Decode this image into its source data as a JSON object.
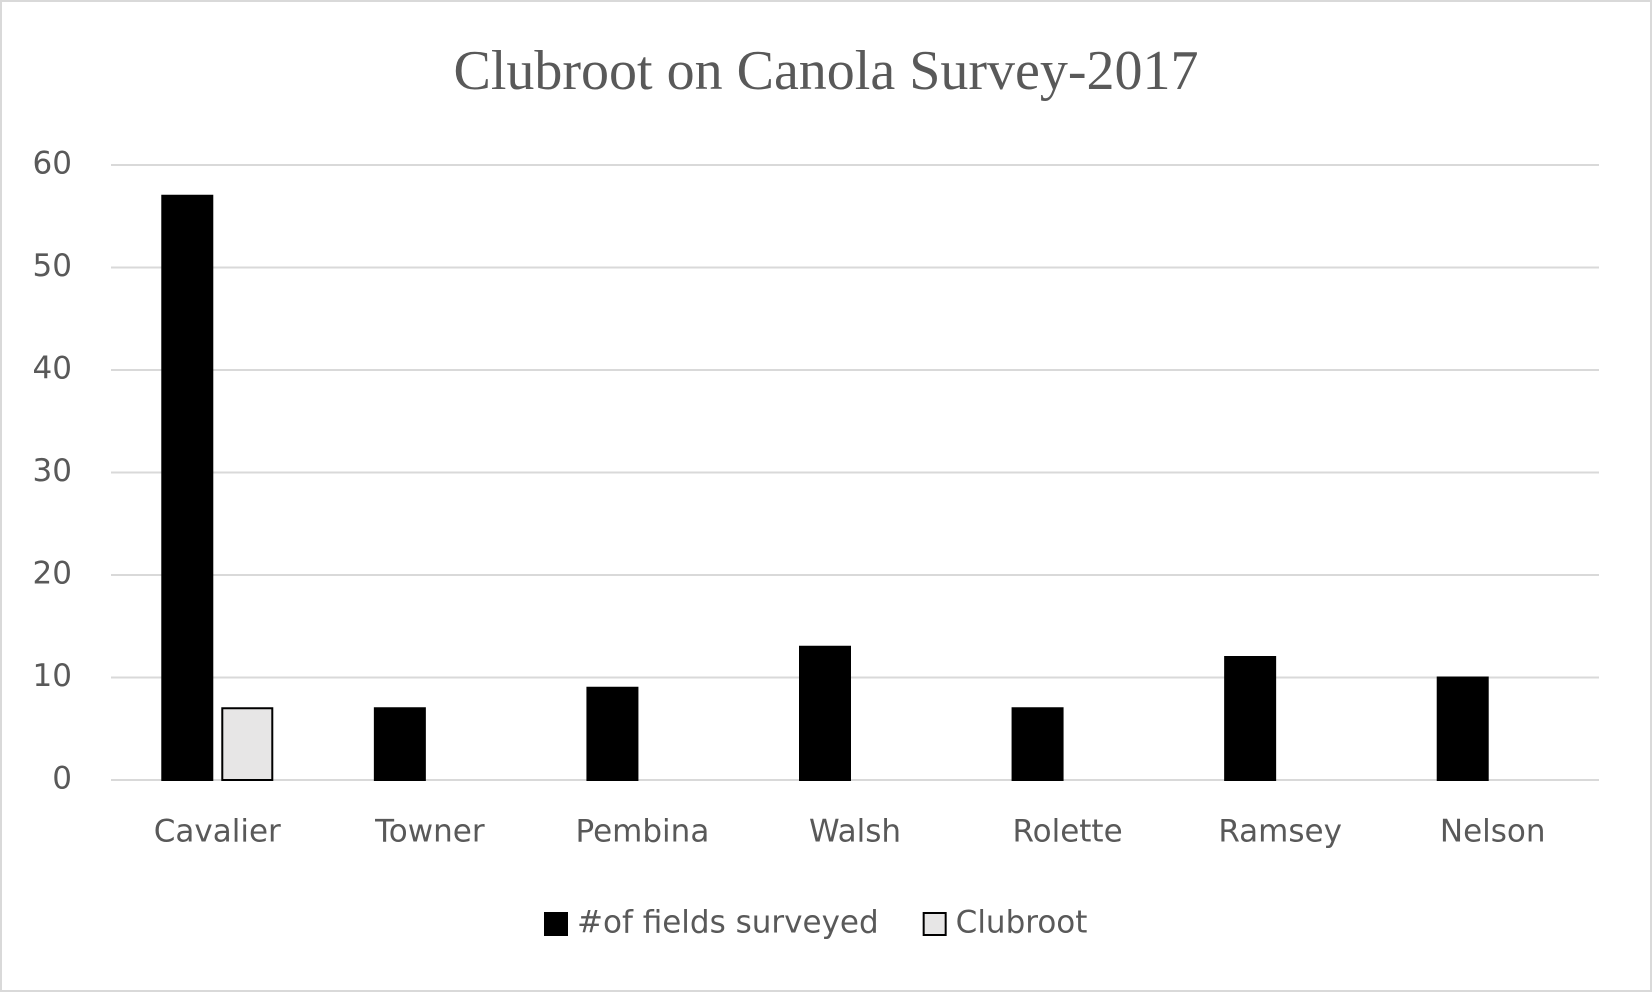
{
  "chart_data": {
    "type": "bar",
    "title": "Clubroot on Canola Survey-2017",
    "categories": [
      "Cavalier",
      "Towner",
      "Pembina",
      "Walsh",
      "Rolette",
      "Ramsey",
      "Nelson"
    ],
    "series": [
      {
        "name": "#of fields surveyed",
        "color": "#000000",
        "values": [
          57,
          7,
          9,
          13,
          7,
          12,
          10
        ]
      },
      {
        "name": "Clubroot",
        "color": "#e7e6e6",
        "values": [
          7,
          0,
          0,
          0,
          0,
          0,
          0
        ]
      }
    ],
    "ylim": [
      0,
      60
    ],
    "yticks": [
      0,
      10,
      20,
      30,
      40,
      50,
      60
    ],
    "grid": true,
    "legend": "bottom"
  }
}
